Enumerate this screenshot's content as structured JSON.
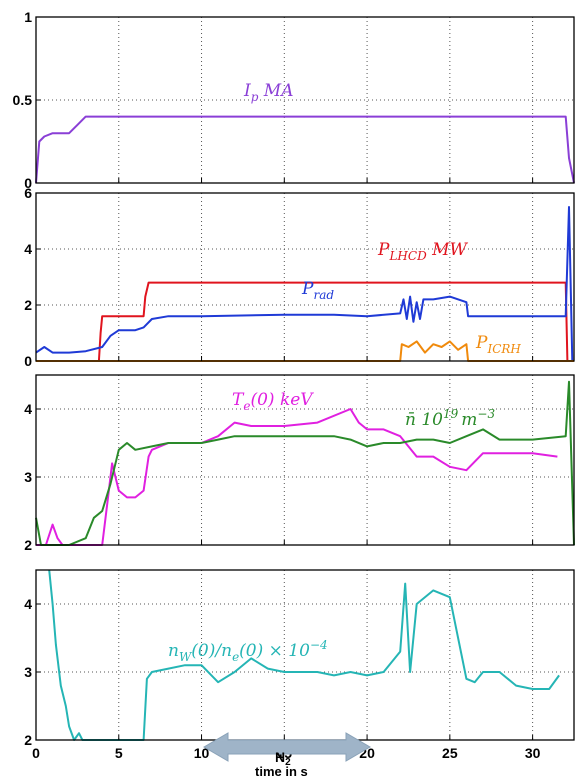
{
  "chart_data": [
    {
      "type": "line",
      "panel": "ip",
      "xlim": [
        0,
        32.5
      ],
      "ylim": [
        0,
        1
      ],
      "yticks": [
        "0",
        "0.5",
        "1"
      ],
      "grid": true,
      "series": [
        {
          "name": "I_p MA",
          "color": "#8a3fd6",
          "x": [
            0,
            0.2,
            0.5,
            1.0,
            1.5,
            2.0,
            2.5,
            3.0,
            5,
            8,
            10,
            15,
            20,
            25,
            30,
            32.0,
            32.2,
            32.5
          ],
          "y": [
            0.0,
            0.25,
            0.28,
            0.3,
            0.3,
            0.3,
            0.35,
            0.4,
            0.4,
            0.4,
            0.4,
            0.4,
            0.4,
            0.4,
            0.4,
            0.4,
            0.15,
            0.0
          ]
        }
      ]
    },
    {
      "type": "line",
      "panel": "power",
      "xlim": [
        0,
        32.5
      ],
      "ylim": [
        0,
        6
      ],
      "yticks": [
        "0",
        "2",
        "4",
        "6"
      ],
      "grid": true,
      "series": [
        {
          "name": "P_LHCD MW",
          "color": "#e0141e",
          "x": [
            0,
            3.8,
            3.9,
            4.0,
            6.5,
            6.6,
            6.8,
            31.0,
            32.0,
            32.1,
            32.5
          ],
          "y": [
            0,
            0,
            1.0,
            1.6,
            1.6,
            2.3,
            2.8,
            2.8,
            2.8,
            0,
            0
          ]
        },
        {
          "name": "P_rad",
          "color": "#1f3ad6",
          "x": [
            0,
            0.5,
            1,
            2,
            3,
            4,
            4.5,
            5,
            6,
            6.5,
            7,
            8,
            10,
            15,
            18,
            20,
            22,
            22.2,
            22.4,
            22.6,
            22.8,
            23,
            23.2,
            23.4,
            24,
            25,
            26,
            26.1,
            28,
            30,
            32,
            32.2,
            32.4,
            32.5
          ],
          "y": [
            0.3,
            0.5,
            0.3,
            0.3,
            0.35,
            0.5,
            0.9,
            1.1,
            1.1,
            1.2,
            1.5,
            1.6,
            1.6,
            1.65,
            1.65,
            1.6,
            1.7,
            2.2,
            1.5,
            2.3,
            1.4,
            2.1,
            1.5,
            2.2,
            2.2,
            2.3,
            2.1,
            1.6,
            1.6,
            1.6,
            1.6,
            5.5,
            0,
            0
          ]
        },
        {
          "name": "P_ICRH",
          "color": "#f08a0c",
          "x": [
            0,
            22,
            22.1,
            22.5,
            23,
            23.5,
            24,
            24.5,
            25,
            25.5,
            26,
            26.1,
            32.5
          ],
          "y": [
            0,
            0,
            0.6,
            0.5,
            0.7,
            0.3,
            0.6,
            0.5,
            0.7,
            0.4,
            0.6,
            0,
            0
          ]
        }
      ]
    },
    {
      "type": "line",
      "panel": "te-ne",
      "xlim": [
        0,
        32.5
      ],
      "ylim": [
        2,
        4.5
      ],
      "yticks": [
        "2",
        "3",
        "4"
      ],
      "grid": true,
      "series": [
        {
          "name": "T_e(0) keV",
          "color": "#e020e0",
          "x": [
            0,
            0.3,
            0.6,
            1.0,
            1.3,
            1.6,
            2,
            3,
            4,
            4.3,
            4.6,
            5.0,
            5.5,
            6,
            6.5,
            6.8,
            7,
            8,
            10,
            11,
            12,
            13,
            15,
            17,
            19,
            19.5,
            20,
            21,
            22,
            23,
            24,
            25,
            26,
            27,
            28,
            30,
            31.5
          ],
          "y": [
            2.0,
            2.0,
            2.0,
            2.3,
            2.1,
            2.0,
            2.0,
            2.0,
            2.0,
            2.6,
            3.2,
            2.8,
            2.7,
            2.7,
            2.8,
            3.3,
            3.4,
            3.5,
            3.5,
            3.6,
            3.8,
            3.75,
            3.75,
            3.8,
            4.0,
            3.8,
            3.7,
            3.7,
            3.6,
            3.3,
            3.3,
            3.15,
            3.1,
            3.35,
            3.35,
            3.35,
            3.3
          ]
        },
        {
          "name": "n̄ 10^19 m^-3",
          "color": "#2a8a2a",
          "x": [
            0,
            0.3,
            0.6,
            2.0,
            3.0,
            3.5,
            4.0,
            4.5,
            5.0,
            5.5,
            6.0,
            7.0,
            8,
            10,
            11,
            12,
            15,
            18,
            19,
            20,
            21,
            22,
            23,
            24,
            25,
            26,
            27,
            28,
            30,
            32,
            32.2,
            32.5
          ],
          "y": [
            2.4,
            2.0,
            2.0,
            2.0,
            2.1,
            2.4,
            2.5,
            2.9,
            3.4,
            3.5,
            3.4,
            3.45,
            3.5,
            3.5,
            3.55,
            3.6,
            3.6,
            3.6,
            3.55,
            3.45,
            3.5,
            3.5,
            3.55,
            3.55,
            3.5,
            3.6,
            3.7,
            3.55,
            3.55,
            3.6,
            4.4,
            2.0
          ]
        }
      ]
    },
    {
      "type": "line",
      "panel": "nw",
      "xlim": [
        0,
        32.5
      ],
      "ylim": [
        2,
        4.5
      ],
      "xticks": [
        "0",
        "5",
        "10",
        "15",
        "20",
        "25",
        "30"
      ],
      "yticks": [
        "2",
        "3",
        "4"
      ],
      "xlabel": "time in s",
      "grid": true,
      "series": [
        {
          "name": "n_W(0)/n_e(0) × 10^-4",
          "color": "#25b5b5",
          "x": [
            0.8,
            1.0,
            1.2,
            1.5,
            1.8,
            2.0,
            2.3,
            2.6,
            2.8,
            4.7,
            6.5,
            6.7,
            7.0,
            8,
            9,
            10,
            11,
            12,
            13,
            14,
            15,
            16,
            17,
            18,
            19,
            20,
            21,
            22,
            22.3,
            22.6,
            23,
            24,
            25,
            25.5,
            26,
            26.5,
            27,
            28,
            29,
            30,
            31,
            31.6
          ],
          "y": [
            4.5,
            4.0,
            3.4,
            2.8,
            2.5,
            2.2,
            2.0,
            2.1,
            2.0,
            2.0,
            2.0,
            2.9,
            3.0,
            3.05,
            3.1,
            3.1,
            2.85,
            3.0,
            3.2,
            3.05,
            3.0,
            3.0,
            3.0,
            2.95,
            3.0,
            2.95,
            3.0,
            3.3,
            4.3,
            3.0,
            4.0,
            4.2,
            4.1,
            3.5,
            2.9,
            2.85,
            3.0,
            3.0,
            2.8,
            2.75,
            2.75,
            2.95
          ]
        }
      ],
      "annotation_arrow": {
        "label": "N₂",
        "from": 10.5,
        "to": 20
      }
    }
  ],
  "labels": {
    "ip": {
      "main": "I",
      "sub": "p",
      "tail": " MA"
    },
    "lhcd": {
      "main": "P",
      "sub": "LHCD",
      "tail": " MW"
    },
    "prad": {
      "main": "P",
      "sub": "rad"
    },
    "icrh": {
      "main": "P",
      "sub": "ICRH"
    },
    "te": {
      "main": "T",
      "sub": "e",
      "tail": "(0) keV"
    },
    "ne": {
      "text": "n̄  10",
      "sup": "19",
      "tail": "m",
      "sup2": "−3"
    },
    "nw": {
      "main": "n",
      "sub": "W",
      "tail": "(0)/n",
      "sub2": "e",
      "tail2": "(0) × 10",
      "sup": "−4"
    },
    "n2": {
      "main": "N",
      "sub": "2"
    },
    "xlabel": "time in s"
  }
}
